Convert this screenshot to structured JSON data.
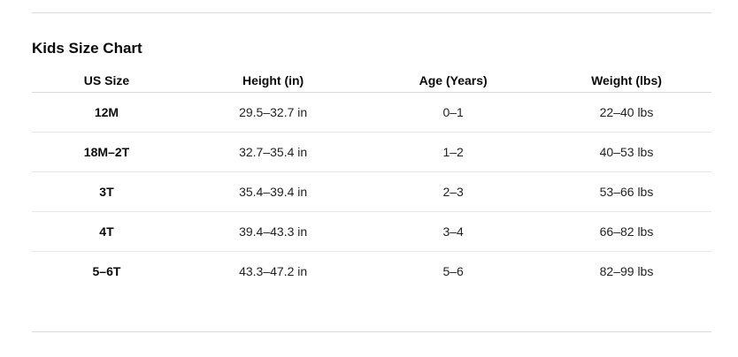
{
  "title": "Kids Size Chart",
  "table": {
    "columns": [
      "US Size",
      "Height (in)",
      "Age (Years)",
      "Weight (lbs)"
    ],
    "rows": [
      {
        "size": "12M",
        "height": "29.5–32.7 in",
        "age": "0–1",
        "weight": "22–40 lbs"
      },
      {
        "size": "18M–2T",
        "height": "32.7–35.4 in",
        "age": "1–2",
        "weight": "40–53 lbs"
      },
      {
        "size": "3T",
        "height": "35.4–39.4 in",
        "age": "2–3",
        "weight": "53–66 lbs"
      },
      {
        "size": "4T",
        "height": "39.4–43.3 in",
        "age": "3–4",
        "weight": "66–82 lbs"
      },
      {
        "size": "5–6T",
        "height": "43.3–47.2 in",
        "age": "5–6",
        "weight": "82–99 lbs"
      }
    ]
  }
}
